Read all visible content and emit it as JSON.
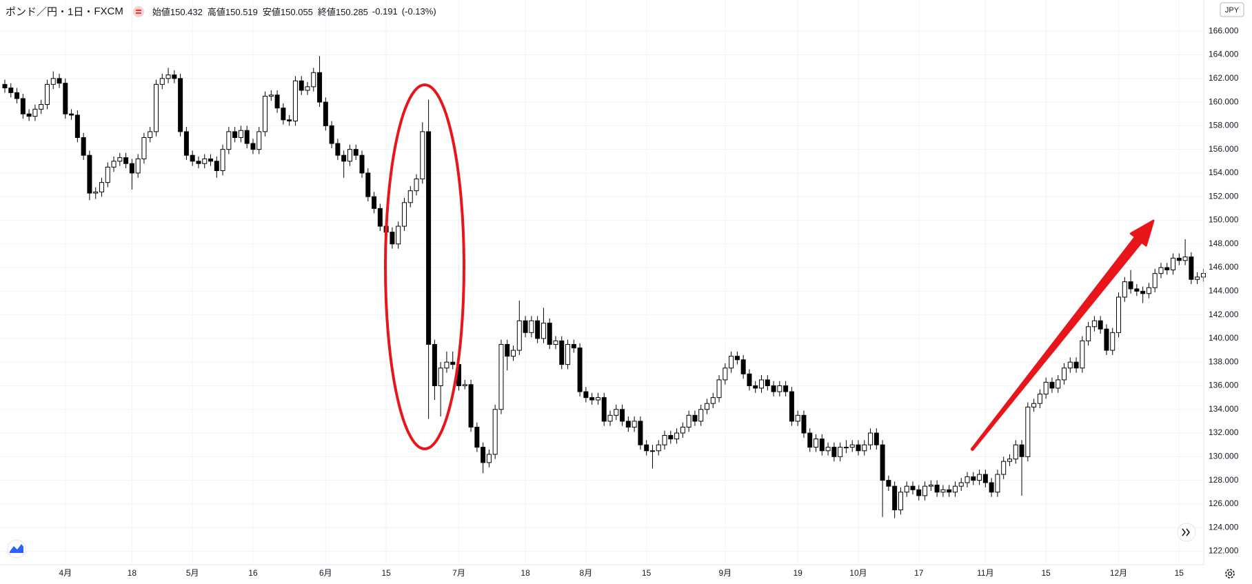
{
  "header": {
    "symbol": "ポンド／円",
    "interval": "1日",
    "source": "FXCM",
    "ohlc": [
      {
        "label": "始値",
        "value": "150.432"
      },
      {
        "label": "高値",
        "value": "150.519"
      },
      {
        "label": "安値",
        "value": "150.055"
      },
      {
        "label": "終値",
        "value": "150.285"
      }
    ],
    "change": "-0.191",
    "change_percent": "(-0.13%)"
  },
  "currency": "JPY",
  "chart_data": {
    "type": "candlestick",
    "up_color": "#ffffff",
    "down_color": "#000000",
    "grid": true,
    "ylim": [
      120.86,
      168.64
    ],
    "yticks": [
      {
        "value": 122,
        "label": "122.000"
      },
      {
        "value": 124,
        "label": "124.000"
      },
      {
        "value": 126,
        "label": "126.000"
      },
      {
        "value": 128,
        "label": "128.000"
      },
      {
        "value": 130,
        "label": "130.000"
      },
      {
        "value": 132,
        "label": "132.000"
      },
      {
        "value": 134,
        "label": "134.000"
      },
      {
        "value": 136,
        "label": "136.000"
      },
      {
        "value": 138,
        "label": "138.000"
      },
      {
        "value": 140,
        "label": "140.000"
      },
      {
        "value": 142,
        "label": "142.000"
      },
      {
        "value": 144,
        "label": "144.000"
      },
      {
        "value": 146,
        "label": "146.000"
      },
      {
        "value": 148,
        "label": "148.000"
      },
      {
        "value": 150,
        "label": "150.000"
      },
      {
        "value": 152,
        "label": "152.000"
      },
      {
        "value": 154,
        "label": "154.000"
      },
      {
        "value": 156,
        "label": "156.000"
      },
      {
        "value": 158,
        "label": "158.000"
      },
      {
        "value": 160,
        "label": "160.000"
      },
      {
        "value": 162,
        "label": "162.000"
      },
      {
        "value": 164,
        "label": "164.000"
      },
      {
        "value": 166,
        "label": "166.000"
      }
    ],
    "categories": [
      null,
      null,
      null,
      null,
      null,
      null,
      null,
      null,
      null,
      null,
      "4月",
      null,
      null,
      null,
      null,
      null,
      null,
      null,
      null,
      null,
      null,
      "18",
      null,
      null,
      null,
      null,
      null,
      null,
      null,
      null,
      null,
      "5月",
      null,
      null,
      null,
      null,
      null,
      null,
      null,
      null,
      null,
      "16",
      null,
      null,
      null,
      null,
      null,
      null,
      null,
      null,
      null,
      null,
      null,
      "6月",
      null,
      null,
      null,
      null,
      null,
      null,
      null,
      null,
      null,
      "15",
      null,
      null,
      null,
      null,
      null,
      null,
      null,
      null,
      null,
      null,
      null,
      "7月",
      null,
      null,
      null,
      null,
      null,
      null,
      null,
      null,
      null,
      null,
      "18",
      null,
      null,
      null,
      null,
      null,
      null,
      null,
      null,
      null,
      "8月",
      null,
      null,
      null,
      null,
      null,
      null,
      null,
      null,
      null,
      "15",
      null,
      null,
      null,
      null,
      null,
      null,
      null,
      null,
      null,
      null,
      null,
      null,
      "9月",
      null,
      null,
      null,
      null,
      null,
      null,
      null,
      null,
      null,
      null,
      null,
      "19",
      null,
      null,
      null,
      null,
      null,
      null,
      null,
      null,
      null,
      "10月",
      null,
      null,
      null,
      null,
      null,
      null,
      null,
      null,
      null,
      "17",
      null,
      null,
      null,
      null,
      null,
      null,
      null,
      null,
      null,
      null,
      "11月",
      null,
      null,
      null,
      null,
      null,
      null,
      null,
      null,
      null,
      "15",
      null,
      null,
      null,
      null,
      null,
      null,
      null,
      null,
      null,
      null,
      null,
      "12月",
      null,
      null,
      null,
      null,
      null,
      null,
      null,
      null,
      null,
      "15",
      null,
      null,
      null,
      null
    ],
    "open": [
      161.5,
      161.2,
      160.8,
      160.3,
      159.0,
      158.8,
      159.4,
      159.8,
      161.5,
      162.0,
      161.6,
      159.0,
      158.9,
      157.0,
      155.5,
      152.3,
      152.4,
      153.2,
      154.5,
      155.0,
      155.3,
      154.8,
      154.0,
      155.2,
      157.0,
      157.5,
      161.5,
      162.0,
      162.3,
      162.0,
      157.5,
      155.5,
      155.0,
      154.8,
      155.2,
      155.0,
      154.2,
      156.0,
      157.5,
      157.0,
      157.6,
      156.5,
      156.0,
      157.5,
      160.5,
      160.6,
      159.5,
      158.5,
      158.4,
      161.8,
      161.0,
      161.3,
      162.5,
      160.0,
      158.0,
      156.5,
      155.5,
      155.0,
      156.0,
      155.5,
      154.0,
      152.0,
      151.0,
      149.5,
      149.0,
      148.0,
      149.5,
      151.5,
      152.5,
      153.5,
      157.5,
      139.5,
      136.0,
      137.5,
      138.0,
      137.8,
      136.0,
      136.1,
      132.5,
      130.8,
      129.5,
      130.2,
      134.0,
      139.5,
      138.5,
      139.0,
      141.5,
      140.5,
      141.5,
      140.0,
      141.3,
      139.5,
      139.8,
      137.8,
      139.5,
      139.2,
      135.5,
      135.0,
      134.8,
      135.0,
      133.0,
      133.5,
      134.0,
      133.0,
      132.5,
      133.0,
      131.0,
      130.5,
      130.5,
      131.0,
      131.8,
      131.5,
      132.0,
      132.5,
      133.5,
      133.0,
      134.0,
      134.5,
      135.0,
      136.5,
      137.5,
      138.5,
      138.2,
      137.0,
      136.0,
      135.8,
      136.5,
      136.0,
      135.5,
      136.0,
      135.5,
      133.0,
      133.5,
      132.0,
      130.8,
      131.5,
      130.5,
      130.8,
      130.0,
      130.8,
      130.8,
      131.0,
      130.5,
      131.0,
      132.0,
      131.0,
      128.0,
      127.5,
      125.5,
      127.0,
      127.5,
      127.2,
      126.7,
      127.5,
      127.6,
      127.0,
      127.2,
      127.0,
      127.5,
      127.8,
      128.3,
      128.0,
      128.5,
      127.8,
      127.0,
      128.5,
      129.6,
      129.8,
      131.0,
      130.0,
      134.2,
      134.5,
      135.3,
      136.3,
      135.8,
      136.5,
      137.5,
      138.0,
      137.5,
      139.8,
      141.0,
      141.5,
      140.8,
      139.0,
      140.5,
      143.5,
      144.8,
      144.2,
      144.0,
      143.8,
      144.3,
      145.5,
      146.0,
      145.8,
      146.8,
      146.6,
      146.9,
      145.0,
      145.2
    ],
    "high": [
      161.9,
      161.6,
      161.2,
      160.7,
      159.4,
      159.8,
      160.2,
      161.9,
      162.6,
      162.4,
      162.0,
      159.4,
      159.3,
      157.4,
      155.9,
      152.8,
      153.6,
      154.9,
      155.4,
      155.7,
      155.7,
      155.2,
      155.6,
      157.4,
      157.9,
      161.9,
      162.4,
      162.9,
      162.7,
      162.4,
      157.9,
      155.9,
      155.4,
      155.6,
      155.6,
      155.4,
      156.4,
      157.9,
      157.9,
      158.0,
      158.0,
      156.9,
      157.9,
      160.9,
      161.0,
      161.0,
      159.9,
      158.9,
      162.2,
      162.2,
      161.7,
      162.9,
      163.9,
      160.4,
      158.4,
      156.9,
      155.9,
      156.4,
      156.4,
      155.9,
      154.4,
      152.4,
      151.4,
      150.2,
      149.4,
      149.9,
      151.9,
      152.9,
      153.9,
      158.3,
      160.2,
      139.9,
      138.0,
      138.9,
      138.9,
      138.2,
      136.5,
      136.5,
      132.9,
      131.2,
      130.6,
      134.4,
      139.9,
      139.9,
      139.4,
      143.2,
      141.9,
      141.9,
      141.9,
      142.6,
      141.7,
      140.2,
      140.2,
      139.9,
      139.9,
      139.6,
      135.9,
      135.4,
      135.4,
      135.4,
      133.9,
      134.4,
      134.4,
      133.4,
      133.4,
      133.4,
      131.4,
      131.0,
      131.4,
      132.2,
      132.2,
      132.4,
      132.9,
      133.9,
      133.9,
      134.4,
      134.9,
      135.4,
      136.9,
      137.9,
      138.9,
      138.9,
      138.6,
      137.4,
      136.4,
      136.9,
      136.9,
      136.4,
      136.4,
      136.4,
      135.9,
      133.9,
      133.9,
      132.4,
      131.9,
      131.9,
      131.2,
      131.2,
      131.2,
      131.4,
      131.4,
      131.4,
      131.4,
      132.4,
      132.4,
      131.4,
      128.4,
      127.9,
      127.4,
      127.9,
      127.9,
      127.6,
      127.9,
      128.0,
      128.0,
      127.6,
      127.6,
      127.9,
      128.2,
      128.7,
      128.7,
      128.9,
      128.9,
      128.2,
      128.9,
      130.0,
      130.2,
      131.4,
      131.4,
      134.6,
      134.9,
      135.7,
      136.7,
      136.7,
      136.9,
      137.9,
      138.4,
      138.4,
      140.2,
      141.4,
      141.9,
      141.9,
      141.2,
      140.9,
      143.9,
      145.2,
      145.8,
      144.6,
      144.4,
      144.7,
      145.9,
      146.4,
      146.4,
      147.2,
      147.2,
      148.4,
      147.3,
      145.6,
      145.9
    ],
    "low": [
      160.8,
      160.4,
      159.9,
      158.6,
      158.4,
      158.4,
      159.0,
      159.4,
      161.1,
      161.2,
      158.6,
      158.5,
      156.6,
      155.1,
      151.7,
      151.8,
      152.0,
      152.8,
      154.1,
      154.6,
      154.4,
      152.6,
      153.6,
      154.8,
      156.6,
      157.1,
      161.1,
      161.6,
      161.6,
      157.1,
      155.1,
      154.6,
      154.4,
      154.4,
      154.6,
      153.6,
      153.8,
      155.6,
      156.6,
      156.6,
      156.1,
      155.6,
      155.6,
      157.1,
      160.1,
      159.1,
      158.1,
      158.0,
      158.0,
      160.6,
      160.6,
      160.9,
      159.6,
      157.6,
      156.1,
      155.1,
      153.6,
      154.6,
      155.1,
      153.6,
      151.6,
      150.6,
      149.1,
      145.3,
      147.6,
      147.6,
      149.1,
      151.1,
      152.1,
      153.1,
      133.2,
      134.8,
      133.4,
      137.1,
      137.4,
      135.6,
      135.7,
      132.1,
      130.4,
      128.6,
      129.1,
      129.8,
      133.6,
      137.3,
      138.1,
      138.6,
      140.1,
      140.1,
      139.6,
      139.6,
      139.1,
      139.1,
      137.4,
      137.4,
      138.8,
      135.1,
      134.6,
      134.4,
      134.4,
      132.6,
      132.6,
      133.1,
      132.6,
      132.1,
      132.1,
      130.6,
      130.1,
      129.0,
      130.1,
      130.6,
      131.1,
      131.1,
      131.6,
      132.1,
      132.6,
      132.6,
      133.6,
      134.1,
      134.6,
      136.1,
      137.1,
      137.8,
      136.6,
      135.6,
      135.4,
      135.4,
      135.6,
      135.1,
      135.1,
      135.1,
      132.6,
      132.6,
      131.6,
      130.4,
      130.4,
      130.1,
      130.1,
      129.6,
      129.6,
      130.3,
      130.4,
      130.1,
      130.1,
      130.6,
      130.6,
      124.9,
      127.1,
      124.8,
      125.1,
      126.6,
      126.8,
      126.3,
      126.3,
      127.1,
      126.6,
      126.6,
      126.6,
      126.6,
      127.1,
      127.4,
      127.6,
      127.6,
      127.4,
      126.6,
      126.6,
      128.1,
      129.2,
      129.4,
      126.7,
      129.6,
      133.8,
      134.1,
      134.9,
      135.4,
      135.4,
      136.1,
      137.1,
      137.1,
      137.1,
      139.4,
      140.6,
      140.4,
      138.6,
      138.6,
      140.1,
      143.1,
      143.8,
      143.6,
      143.0,
      143.4,
      143.9,
      145.1,
      145.4,
      145.4,
      146.2,
      146.2,
      144.6,
      144.6,
      144.8
    ],
    "close": [
      161.2,
      160.8,
      160.3,
      159.0,
      158.8,
      159.4,
      159.8,
      161.5,
      162.0,
      161.6,
      159.0,
      158.9,
      157.0,
      155.5,
      152.3,
      152.4,
      153.2,
      154.5,
      155.0,
      155.3,
      154.8,
      154.0,
      155.2,
      157.0,
      157.5,
      161.5,
      162.0,
      162.3,
      162.0,
      157.5,
      155.5,
      155.0,
      154.8,
      155.2,
      155.0,
      154.2,
      156.0,
      157.5,
      157.0,
      157.6,
      156.5,
      156.0,
      157.5,
      160.5,
      160.6,
      159.5,
      158.5,
      158.4,
      161.8,
      161.0,
      161.3,
      162.5,
      160.0,
      158.0,
      156.5,
      155.5,
      155.0,
      156.0,
      155.5,
      154.0,
      152.0,
      151.0,
      149.5,
      149.0,
      148.0,
      149.5,
      151.5,
      152.5,
      153.5,
      157.5,
      139.5,
      136.0,
      137.5,
      138.0,
      137.8,
      136.0,
      136.1,
      132.5,
      130.8,
      129.5,
      130.2,
      134.0,
      139.5,
      138.5,
      139.0,
      141.5,
      140.5,
      141.5,
      140.0,
      141.3,
      139.5,
      139.8,
      137.8,
      139.5,
      139.2,
      135.5,
      135.0,
      134.8,
      135.0,
      133.0,
      133.5,
      134.0,
      133.0,
      132.5,
      133.0,
      131.0,
      130.5,
      130.5,
      131.0,
      131.8,
      131.5,
      132.0,
      132.5,
      133.5,
      133.0,
      134.0,
      134.5,
      135.0,
      136.5,
      137.5,
      138.5,
      138.2,
      137.0,
      136.0,
      135.8,
      136.5,
      136.0,
      135.5,
      136.0,
      135.5,
      133.0,
      133.5,
      132.0,
      130.8,
      131.5,
      130.5,
      130.8,
      130.0,
      130.8,
      130.8,
      131.0,
      130.5,
      131.0,
      132.0,
      131.0,
      128.0,
      127.5,
      125.5,
      127.0,
      127.5,
      127.2,
      126.7,
      127.5,
      127.6,
      127.0,
      127.2,
      127.0,
      127.5,
      127.8,
      128.3,
      128.0,
      128.5,
      127.8,
      127.0,
      128.5,
      129.6,
      129.8,
      131.0,
      130.0,
      134.2,
      134.5,
      135.3,
      136.3,
      135.8,
      136.5,
      137.5,
      138.0,
      137.5,
      139.8,
      141.0,
      141.5,
      140.8,
      139.0,
      140.5,
      143.5,
      144.8,
      144.2,
      144.0,
      143.8,
      144.3,
      145.5,
      146.0,
      145.8,
      146.8,
      146.6,
      146.9,
      145.0,
      145.2,
      145.5
    ]
  }
}
